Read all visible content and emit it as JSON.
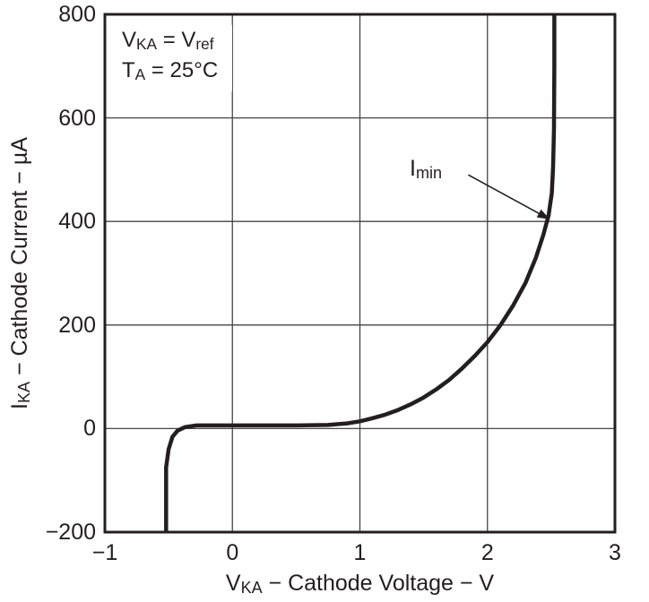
{
  "chart_data": {
    "type": "line",
    "title": "",
    "xlabel": {
      "pre": "V",
      "sub": "KA",
      "post": " − Cathode Voltage − V"
    },
    "ylabel": {
      "pre": "I",
      "sub": "KA",
      "post": " − Cathode Current − µA"
    },
    "xlim": [
      -1,
      3
    ],
    "ylim": [
      -200,
      800
    ],
    "grid": true,
    "x_ticks": [
      {
        "value": -1,
        "label": "−1"
      },
      {
        "value": 0,
        "label": "0"
      },
      {
        "value": 1,
        "label": "1"
      },
      {
        "value": 2,
        "label": "2"
      },
      {
        "value": 3,
        "label": "3"
      }
    ],
    "y_ticks": [
      {
        "value": 800,
        "label": "800"
      },
      {
        "value": 600,
        "label": "600"
      },
      {
        "value": 400,
        "label": "400"
      },
      {
        "value": 200,
        "label": "200"
      },
      {
        "value": 0,
        "label": "0"
      },
      {
        "value": -200,
        "label": "−200"
      }
    ],
    "x_gridlines": [
      0,
      1,
      2
    ],
    "y_gridlines": [
      0,
      200,
      400,
      600
    ],
    "conditions": {
      "line1": {
        "pre": "V",
        "sub1": "KA",
        "mid": " = V",
        "sub2": "ref"
      },
      "line2": {
        "pre": "T",
        "sub1": "A",
        "mid": " = 25°C"
      }
    },
    "imin": {
      "label_pre": "I",
      "label_sub": "min",
      "arrow_from": [
        1.85,
        490
      ],
      "arrow_to": [
        2.49,
        404
      ],
      "knee_point": {
        "voltage": 2.5,
        "current_uA": 400
      }
    },
    "series": [
      {
        "name": "cathode current vs cathode voltage",
        "points": [
          [
            -0.52,
            -200
          ],
          [
            -0.52,
            -75
          ],
          [
            -0.5,
            -40
          ],
          [
            -0.47,
            -16
          ],
          [
            -0.43,
            -4
          ],
          [
            -0.37,
            3
          ],
          [
            -0.28,
            6
          ],
          [
            -0.1,
            6
          ],
          [
            0.2,
            6
          ],
          [
            0.5,
            6
          ],
          [
            0.75,
            7
          ],
          [
            0.9,
            10
          ],
          [
            1.0,
            14
          ],
          [
            1.1,
            20
          ],
          [
            1.2,
            27
          ],
          [
            1.3,
            36
          ],
          [
            1.4,
            47
          ],
          [
            1.5,
            60
          ],
          [
            1.6,
            76
          ],
          [
            1.7,
            94
          ],
          [
            1.8,
            116
          ],
          [
            1.9,
            140
          ],
          [
            2.0,
            167
          ],
          [
            2.1,
            199
          ],
          [
            2.2,
            237
          ],
          [
            2.3,
            282
          ],
          [
            2.38,
            330
          ],
          [
            2.44,
            375
          ],
          [
            2.48,
            412
          ],
          [
            2.505,
            455
          ],
          [
            2.515,
            505
          ],
          [
            2.522,
            580
          ],
          [
            2.525,
            700
          ],
          [
            2.525,
            800
          ]
        ]
      }
    ],
    "colors": {
      "line": "#231f20",
      "grid": "#454547",
      "text": "#231f20",
      "background": "#ffffff"
    }
  }
}
